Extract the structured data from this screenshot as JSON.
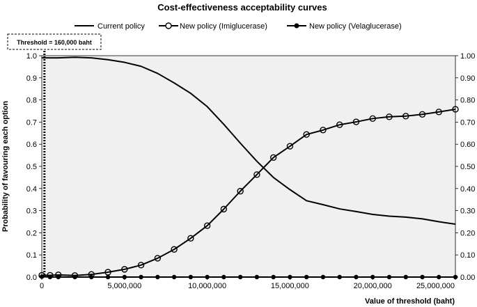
{
  "chart_data": {
    "type": "line",
    "title": "Cost-effectiveness acceptability curves",
    "xlabel": "Value of threshold (baht)",
    "ylabel": "Probability of favouring each option",
    "xlim": [
      0,
      25000000
    ],
    "ylim": [
      0,
      1
    ],
    "grid": false,
    "background": "#f0f0f0",
    "legend_position": "top",
    "x_ticks": [
      0,
      5000000,
      10000000,
      15000000,
      20000000,
      25000000
    ],
    "x_tick_labels": [
      "0",
      "5,000,000",
      "10,000,000",
      "15,000,000",
      "20,000,000",
      "25,000,000"
    ],
    "y_ticks": [
      0,
      0.1,
      0.2,
      0.3,
      0.4,
      0.5,
      0.6,
      0.7,
      0.8,
      0.9,
      1.0
    ],
    "y_left_tick_labels": [
      "0.0",
      "0.1",
      "0.2",
      "0.3",
      "0.4",
      "0.5",
      "0.6",
      "0.7",
      "0.8",
      "0.9",
      "1.0"
    ],
    "y_right_tick_labels": [
      "0.00",
      "0.10",
      "0.20",
      "0.30",
      "0.40",
      "0.50",
      "0.60",
      "0.70",
      "0.80",
      "0.90",
      "1.00"
    ],
    "annotation": {
      "label": "Threshold = 160,000 baht",
      "x": 160000
    },
    "series": [
      {
        "name": "Current policy",
        "marker": "none",
        "color": "#000000",
        "x": [
          0,
          160000,
          500000,
          1000000,
          2000000,
          3000000,
          4000000,
          5000000,
          6000000,
          7000000,
          8000000,
          9000000,
          10000000,
          11000000,
          12000000,
          13000000,
          14000000,
          15000000,
          16000000,
          17000000,
          18000000,
          19000000,
          20000000,
          21000000,
          22000000,
          23000000,
          24000000,
          25000000
        ],
        "y": [
          0.99,
          0.99,
          0.99,
          0.99,
          0.993,
          0.99,
          0.982,
          0.97,
          0.952,
          0.92,
          0.877,
          0.83,
          0.77,
          0.69,
          0.605,
          0.523,
          0.45,
          0.395,
          0.345,
          0.327,
          0.308,
          0.296,
          0.283,
          0.275,
          0.271,
          0.263,
          0.25,
          0.239
        ]
      },
      {
        "name": "New policy (Imiglucerase)",
        "marker": "open-circle",
        "color": "#000000",
        "x": [
          0,
          500000,
          1000000,
          2000000,
          3000000,
          4000000,
          5000000,
          6000000,
          7000000,
          8000000,
          9000000,
          10000000,
          11000000,
          12000000,
          13000000,
          14000000,
          15000000,
          16000000,
          17000000,
          18000000,
          19000000,
          20000000,
          21000000,
          22000000,
          23000000,
          24000000,
          25000000
        ],
        "y": [
          0.008,
          0.008,
          0.01,
          0.007,
          0.012,
          0.022,
          0.035,
          0.054,
          0.085,
          0.125,
          0.175,
          0.232,
          0.307,
          0.388,
          0.463,
          0.54,
          0.591,
          0.644,
          0.664,
          0.688,
          0.701,
          0.716,
          0.724,
          0.727,
          0.735,
          0.746,
          0.758
        ]
      },
      {
        "name": "New policy (Velaglucerase)",
        "marker": "filled-circle",
        "color": "#000000",
        "x": [
          0,
          500000,
          1000000,
          2000000,
          3000000,
          4000000,
          5000000,
          6000000,
          7000000,
          8000000,
          9000000,
          10000000,
          11000000,
          12000000,
          13000000,
          14000000,
          15000000,
          16000000,
          17000000,
          18000000,
          19000000,
          20000000,
          21000000,
          22000000,
          23000000,
          24000000,
          25000000
        ],
        "y": [
          0.002,
          0,
          0,
          0,
          0,
          0,
          0,
          0,
          0,
          0,
          0,
          0,
          0,
          0,
          0,
          0,
          0,
          0,
          0,
          0,
          0,
          0,
          0,
          0,
          0,
          0,
          0
        ]
      }
    ]
  }
}
